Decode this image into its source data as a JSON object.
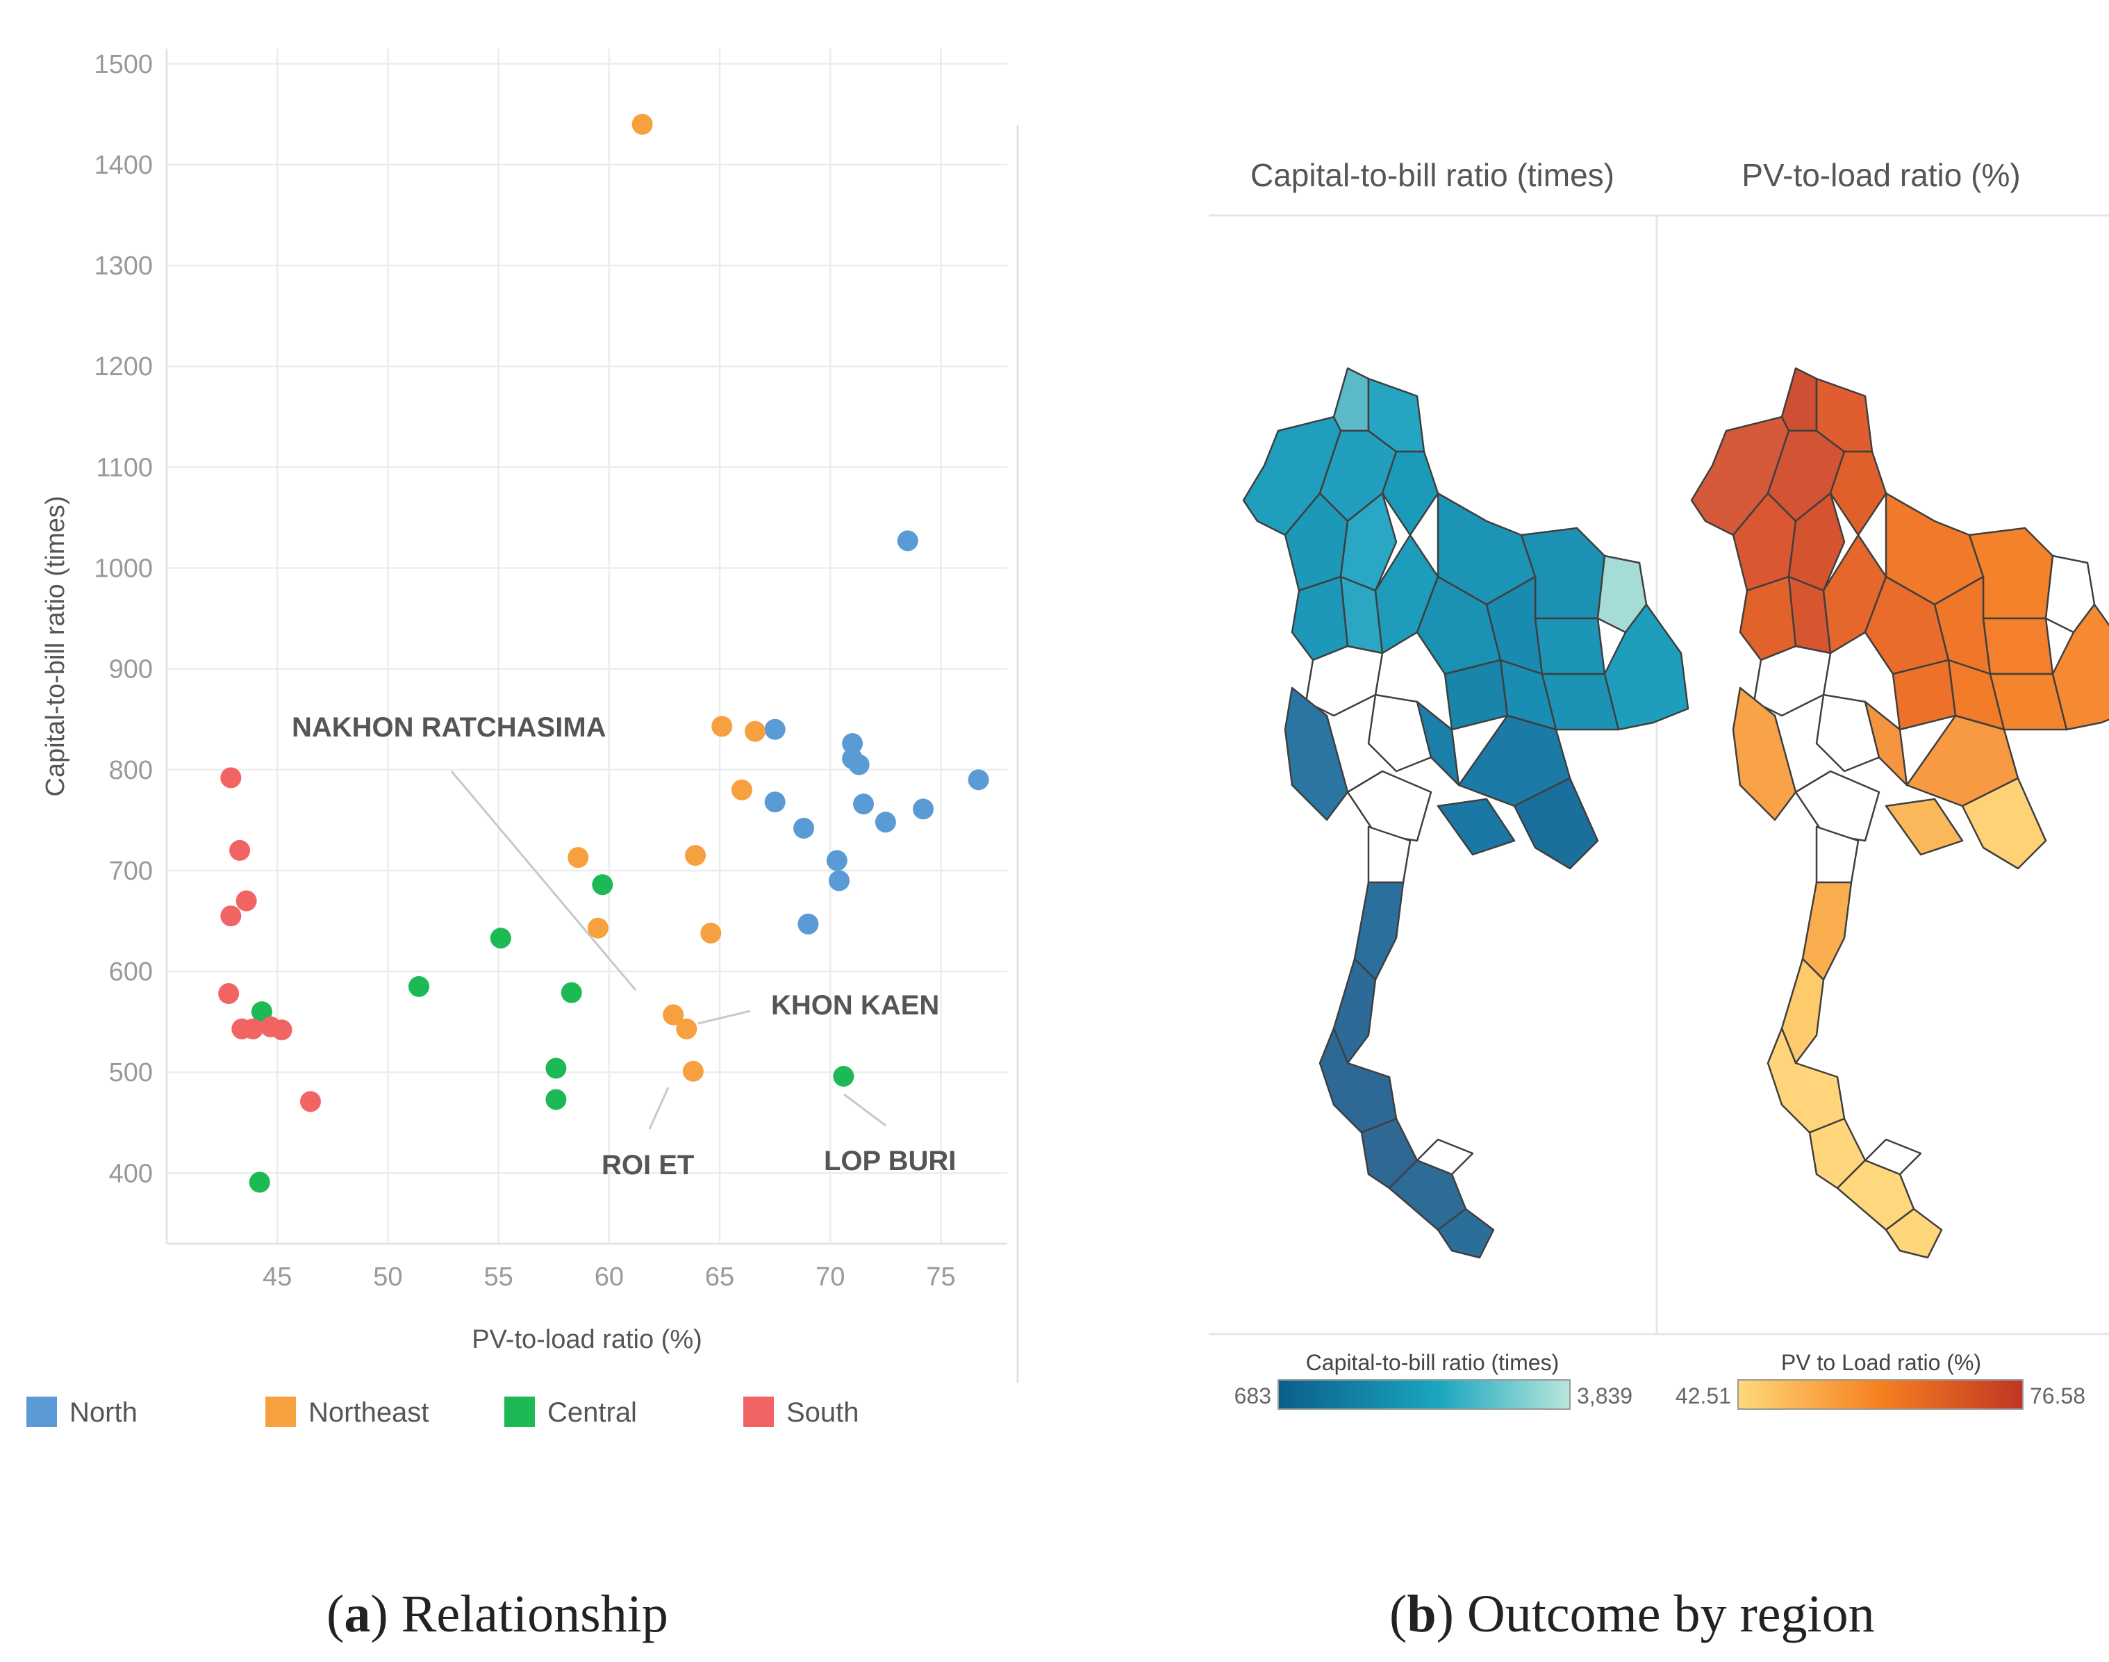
{
  "chart_data": [
    {
      "type": "scatter",
      "title": "",
      "xlabel": "PV-to-load ratio (%)",
      "ylabel": "Capital-to-bill ratio (times)",
      "xlim": [
        40,
        78
      ],
      "ylim": [
        330,
        1515
      ],
      "xticks": [
        45,
        50,
        55,
        60,
        65,
        70,
        75
      ],
      "yticks": [
        400,
        500,
        600,
        700,
        800,
        900,
        1000,
        1100,
        1200,
        1300,
        1400,
        1500
      ],
      "grid": true,
      "legend_position": "bottom",
      "series": [
        {
          "name": "North",
          "color": "#5b9bd5",
          "points": [
            {
              "x": 73.5,
              "y": 1027
            },
            {
              "x": 67.5,
              "y": 840
            },
            {
              "x": 71.0,
              "y": 826
            },
            {
              "x": 71.0,
              "y": 811
            },
            {
              "x": 71.3,
              "y": 805
            },
            {
              "x": 76.7,
              "y": 790
            },
            {
              "x": 67.5,
              "y": 768
            },
            {
              "x": 71.5,
              "y": 766
            },
            {
              "x": 74.2,
              "y": 761
            },
            {
              "x": 72.5,
              "y": 748
            },
            {
              "x": 68.8,
              "y": 742
            },
            {
              "x": 70.3,
              "y": 710
            },
            {
              "x": 70.4,
              "y": 690
            },
            {
              "x": 69.0,
              "y": 647
            }
          ]
        },
        {
          "name": "Northeast",
          "color": "#f6a03f",
          "points": [
            {
              "x": 61.5,
              "y": 1440
            },
            {
              "x": 65.1,
              "y": 843
            },
            {
              "x": 66.6,
              "y": 838
            },
            {
              "x": 66.0,
              "y": 780
            },
            {
              "x": 58.6,
              "y": 713
            },
            {
              "x": 63.9,
              "y": 715
            },
            {
              "x": 59.5,
              "y": 643
            },
            {
              "x": 64.6,
              "y": 638
            },
            {
              "x": 62.9,
              "y": 557
            },
            {
              "x": 63.5,
              "y": 543
            },
            {
              "x": 63.8,
              "y": 501
            }
          ]
        },
        {
          "name": "Central",
          "color": "#1db954",
          "points": [
            {
              "x": 59.7,
              "y": 686
            },
            {
              "x": 55.1,
              "y": 633
            },
            {
              "x": 51.4,
              "y": 585
            },
            {
              "x": 58.3,
              "y": 579
            },
            {
              "x": 44.3,
              "y": 560
            },
            {
              "x": 57.6,
              "y": 504
            },
            {
              "x": 70.6,
              "y": 496
            },
            {
              "x": 57.6,
              "y": 473
            },
            {
              "x": 44.2,
              "y": 391
            }
          ]
        },
        {
          "name": "South",
          "color": "#f26464",
          "points": [
            {
              "x": 42.9,
              "y": 792
            },
            {
              "x": 43.3,
              "y": 720
            },
            {
              "x": 43.6,
              "y": 670
            },
            {
              "x": 42.9,
              "y": 655
            },
            {
              "x": 42.8,
              "y": 578
            },
            {
              "x": 43.4,
              "y": 543
            },
            {
              "x": 43.9,
              "y": 543
            },
            {
              "x": 44.7,
              "y": 545
            },
            {
              "x": 45.2,
              "y": 542
            },
            {
              "x": 46.5,
              "y": 471
            }
          ]
        }
      ],
      "annotations": [
        {
          "text": "NAKHON RATCHASIMA",
          "x": 62.9,
          "y": 557
        },
        {
          "text": "KHON KAEN",
          "x": 63.5,
          "y": 543
        },
        {
          "text": "ROI ET",
          "x": 63.8,
          "y": 501
        },
        {
          "text": "LOP BURI",
          "x": 70.6,
          "y": 496
        }
      ]
    },
    {
      "type": "other",
      "description": "choropleth",
      "map_titles": [
        "Capital-to-bill ratio (times)",
        "PV-to-load ratio (%)"
      ],
      "legends": [
        {
          "title": "Capital-to-bill ratio (times)",
          "min": "683",
          "max": "3,839",
          "color_min": "#0b5e8a",
          "color_mid": "#1aa6bf",
          "color_max": "#b9e6dc"
        },
        {
          "title": "PV to Load ratio (%)",
          "min": "42.51",
          "max": "76.58",
          "color_min": "#ffd97a",
          "color_mid": "#f6801f",
          "color_max": "#c03524"
        }
      ]
    }
  ],
  "captions": {
    "a_label": "a",
    "a_text": " Relationship",
    "b_label": "b",
    "b_text": " Outcome by region"
  }
}
